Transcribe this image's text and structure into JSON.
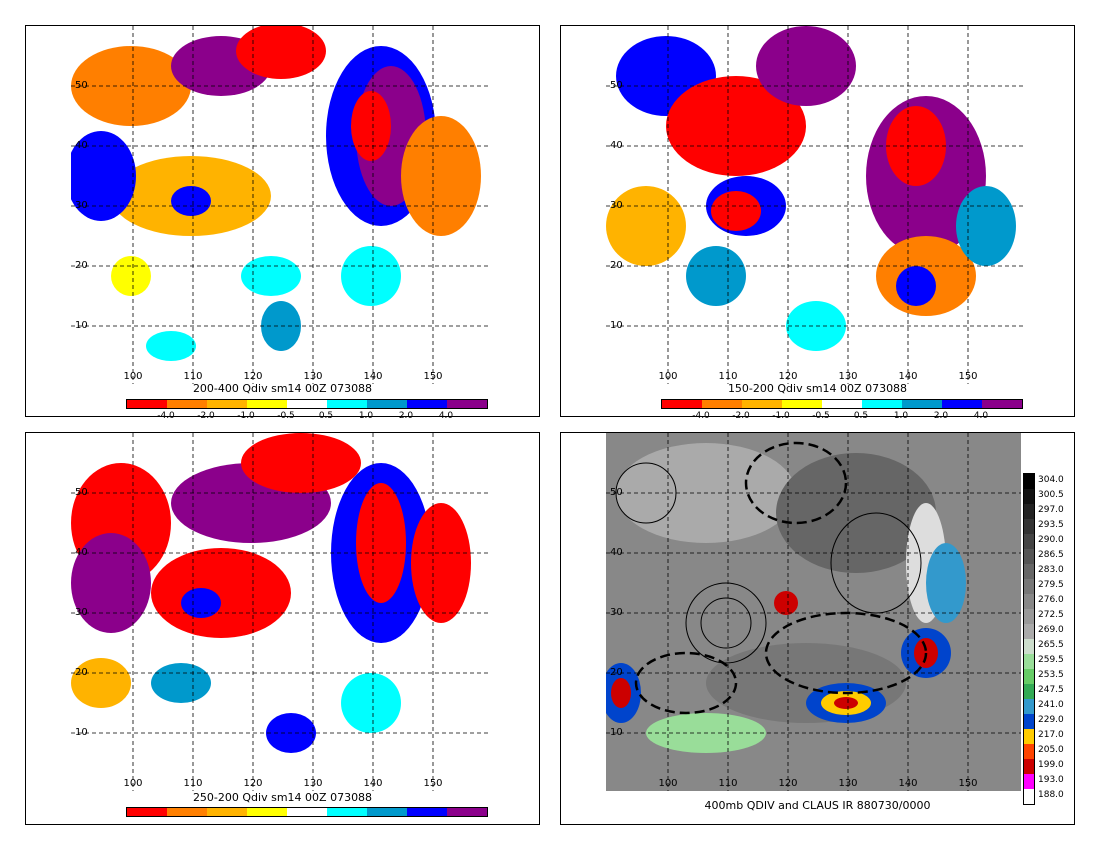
{
  "panels": [
    {
      "caption": "200-400 Qdiv sm14 00Z 073088"
    },
    {
      "caption": "150-200 Qdiv sm14 00Z 073088"
    },
    {
      "caption": "250-200 Qdiv sm14 00Z 073088"
    },
    {
      "caption": "400mb QDIV and CLAUS IR 880730/0000"
    }
  ],
  "lat_labels": [
    "50",
    "40",
    "30",
    "20",
    "10"
  ],
  "lon_labels": [
    "100",
    "110",
    "120",
    "130",
    "140",
    "150"
  ],
  "qdiv_colorbar": {
    "labels": [
      "-4.0",
      "-2.0",
      "-1.0",
      "-0.5",
      "0.5",
      "1.0",
      "2.0",
      "4.0"
    ],
    "colors": [
      "#ff0000",
      "#ff7f00",
      "#ffb300",
      "#ffff00",
      "#ffffff",
      "#00ffff",
      "#0099cc",
      "#0000ff",
      "#8b008b"
    ]
  },
  "ir_colorbar": {
    "labels": [
      "304.0",
      "300.5",
      "297.0",
      "293.5",
      "290.0",
      "286.5",
      "283.0",
      "279.5",
      "276.0",
      "272.5",
      "269.0",
      "265.5",
      "259.5",
      "253.5",
      "247.5",
      "241.0",
      "229.0",
      "217.0",
      "205.0",
      "199.0",
      "193.0",
      "188.0"
    ],
    "colors": [
      "#000000",
      "#111111",
      "#222222",
      "#333333",
      "#444444",
      "#555555",
      "#666666",
      "#777777",
      "#888888",
      "#999999",
      "#aaaaaa",
      "#ccddcc",
      "#99dd99",
      "#66cc66",
      "#33aa55",
      "#3399cc",
      "#0044cc",
      "#ffcc00",
      "#ff4400",
      "#cc0000",
      "#ff00ff",
      "#ffffff"
    ]
  }
}
